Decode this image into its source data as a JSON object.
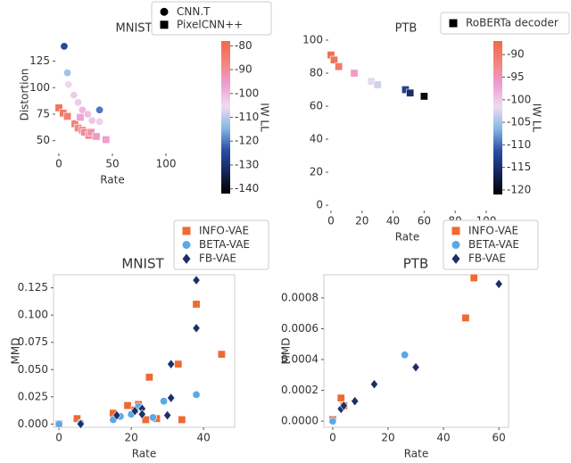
{
  "chart_data": [
    {
      "type": "scatter",
      "title": "MNIST",
      "x_label": "Rate",
      "y_label": "Distortion",
      "colorbar_label": "IW LL",
      "xlim": [
        -3.3,
        103.3
      ],
      "ylim": [
        38,
        149
      ],
      "xticks": [
        0,
        50,
        100
      ],
      "yticks": [
        50,
        75,
        100,
        125
      ],
      "clim": [
        -142,
        -78
      ],
      "cticks": [
        -140,
        -130,
        -120,
        -110,
        -100,
        -90,
        -80
      ],
      "colormap": [
        "#000000",
        "#152659",
        "#2a4ea8",
        "#86b8e6",
        "#eedcf0",
        "#ee9fd2",
        "#f2847e",
        "#f06a46"
      ],
      "series": [
        {
          "name": "CNN.T",
          "marker": "circle",
          "color": "#000000",
          "x": [
            5,
            8,
            9,
            14,
            18,
            22,
            27,
            31,
            38,
            38
          ],
          "values": [
            139,
            114,
            103,
            93,
            86,
            79,
            75,
            69,
            79,
            68
          ],
          "iw_ll": [
            -125,
            -112,
            -105,
            -103,
            -103,
            -100,
            -101,
            -102,
            -120,
            -104
          ]
        },
        {
          "name": "PixelCNN++",
          "marker": "square",
          "color": "#000000",
          "x": [
            0,
            4,
            8,
            15,
            18,
            20,
            22,
            24,
            28,
            30,
            35,
            44
          ],
          "values": [
            81,
            76,
            73,
            66,
            62,
            72,
            60,
            58,
            55,
            58,
            54,
            51
          ],
          "iw_ll": [
            -82,
            -83,
            -85,
            -86,
            -88,
            -97,
            -89,
            -90,
            -90,
            -93,
            -95,
            -96
          ]
        }
      ]
    },
    {
      "type": "scatter",
      "title": "PTB",
      "x_label": "Rate",
      "colorbar_label": "IW LL",
      "xlim": [
        -1.7,
        100
      ],
      "ylim": [
        -3.2,
        102.7
      ],
      "xticks": [
        0,
        20,
        40,
        60,
        80,
        100
      ],
      "yticks": [
        0,
        20,
        40,
        60,
        80,
        100
      ],
      "clim": [
        -121,
        -87
      ],
      "cticks": [
        -120,
        -115,
        -110,
        -105,
        -100,
        -95,
        -90
      ],
      "colormap": [
        "#000000",
        "#152659",
        "#2a4ea8",
        "#86b8e6",
        "#eedcf0",
        "#ee9fd2",
        "#f2847e",
        "#f06a46"
      ],
      "series": [
        {
          "name": "RoBERTa decoder",
          "marker": "square",
          "color": "#000000",
          "x": [
            0,
            2,
            5,
            15,
            26,
            30,
            48,
            51,
            60
          ],
          "values": [
            91,
            88,
            84,
            80,
            75,
            73,
            70,
            68,
            66
          ],
          "iw_ll": [
            -88,
            -89,
            -90,
            -96,
            -102,
            -103,
            -113,
            -115,
            -120
          ]
        }
      ]
    },
    {
      "type": "scatter",
      "title": "MNIST",
      "x_label": "Rate",
      "y_label": "MMD",
      "box": true,
      "xlim": [
        -1.5,
        48.6
      ],
      "ylim": [
        -0.003,
        0.137
      ],
      "xticks": [
        0,
        20,
        40
      ],
      "yticks": [
        {
          "value": 0,
          "label": "0.000"
        },
        0.025,
        {
          "value": 0.05,
          "label": "0.050"
        },
        0.075,
        {
          "value": 0.1,
          "label": "0.100"
        },
        0.125
      ],
      "series": [
        {
          "name": "INFO-VAE",
          "marker": "square",
          "color": "#ee6a33",
          "x": [
            0,
            5,
            15,
            19,
            21,
            22,
            24,
            25,
            27,
            33,
            34,
            38,
            45
          ],
          "values": [
            0,
            0.005,
            0.01,
            0.017,
            0.013,
            0.018,
            0.004,
            0.043,
            0.005,
            0.055,
            0.004,
            0.11,
            0.064
          ]
        },
        {
          "name": "BETA-VAE",
          "marker": "circle",
          "color": "#5aa9e6",
          "x": [
            0,
            6,
            15,
            17,
            20,
            22,
            26,
            29,
            38
          ],
          "values": [
            0,
            0.001,
            0.004,
            0.007,
            0.009,
            0.016,
            0.006,
            0.021,
            0.027
          ]
        },
        {
          "name": "FB-VAE",
          "marker": "diamond",
          "color": "#1b2f6b",
          "x": [
            6,
            16,
            21,
            23,
            23,
            30,
            31,
            31,
            38,
            38
          ],
          "values": [
            0,
            0.008,
            0.012,
            0.014,
            0.009,
            0.008,
            0.055,
            0.024,
            0.132,
            0.088
          ]
        }
      ]
    },
    {
      "type": "scatter",
      "title": "PTB",
      "x_label": "Rate",
      "y_label": "MMD",
      "box": true,
      "xlim": [
        -3.2,
        63.5
      ],
      "ylim": [
        -4e-05,
        0.00095
      ],
      "xticks": [
        0,
        20,
        40,
        60
      ],
      "yticks": [
        {
          "value": 0,
          "label": "0.0000"
        },
        0.0002,
        0.0004,
        0.0006,
        0.0008
      ],
      "series": [
        {
          "name": "INFO-VAE",
          "marker": "square",
          "color": "#ee6a33",
          "x": [
            0,
            3,
            4,
            48,
            51
          ],
          "values": [
            1e-05,
            0.00015,
            0.0001,
            0.00067,
            0.00093
          ]
        },
        {
          "name": "BETA-VAE",
          "marker": "circle",
          "color": "#5aa9e6",
          "x": [
            0,
            3,
            26
          ],
          "values": [
            0,
            8e-05,
            0.00043
          ]
        },
        {
          "name": "FB-VAE",
          "marker": "diamond",
          "color": "#1b2f6b",
          "x": [
            3,
            4,
            8,
            15,
            30,
            60
          ],
          "values": [
            8e-05,
            0.0001,
            0.00013,
            0.00024,
            0.00035,
            0.00089
          ]
        }
      ]
    }
  ]
}
